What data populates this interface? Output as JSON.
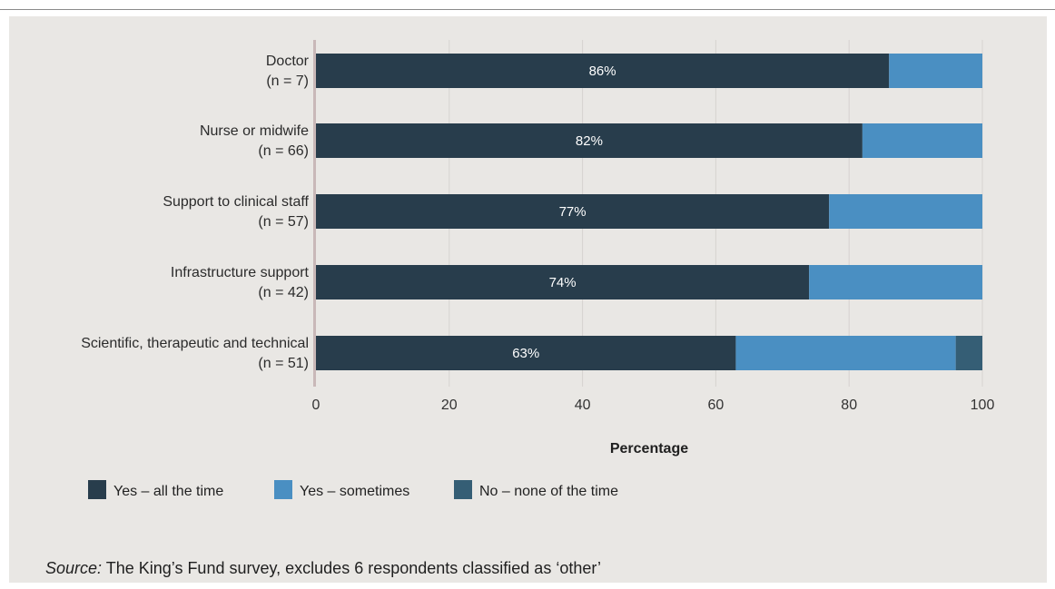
{
  "chart_data": {
    "type": "bar",
    "orientation": "horizontal",
    "stacked": true,
    "categories": [
      [
        "Doctor",
        "(n = 7)"
      ],
      [
        "Nurse or midwife",
        "(n = 66)"
      ],
      [
        "Support to clinical staff",
        "(n = 57)"
      ],
      [
        "Infrastructure support",
        "(n = 42)"
      ],
      [
        "Scientific, therapeutic and technical",
        "(n = 51)"
      ]
    ],
    "series": [
      {
        "name": "Yes – all the time",
        "color": "#283d4c",
        "values": [
          86,
          82,
          77,
          74,
          63
        ],
        "labels": [
          "86%",
          "82%",
          "77%",
          "74%",
          "63%"
        ]
      },
      {
        "name": "Yes – sometimes",
        "color": "#4a8fc2",
        "values": [
          14,
          18,
          23,
          26,
          33
        ]
      },
      {
        "name": "No – none of the time",
        "color": "#355e75",
        "values": [
          0,
          0,
          0,
          0,
          4
        ]
      }
    ],
    "xlim": [
      0,
      100
    ],
    "xticks": [
      "0",
      "20",
      "40",
      "60",
      "80",
      "100"
    ],
    "xlabel": "Percentage",
    "grid": true,
    "legend": "bottom-left"
  },
  "source": {
    "prefix": "Source:",
    "text": " The King’s Fund survey, excludes 6 respondents classified as ‘other’"
  }
}
